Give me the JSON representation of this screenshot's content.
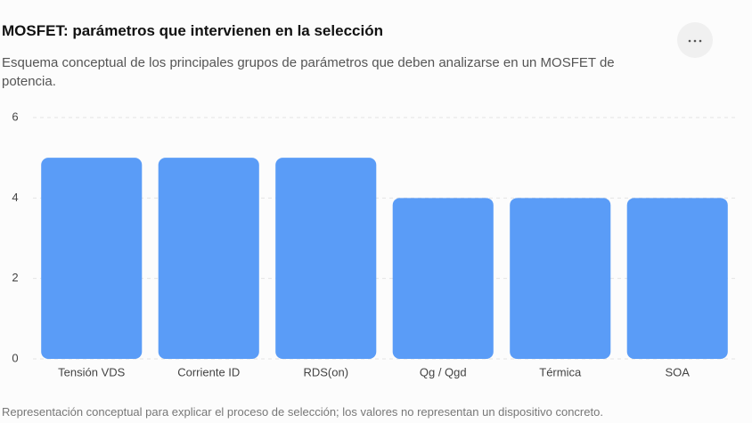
{
  "chart_data": {
    "type": "bar",
    "title": "MOSFET: parámetros que intervienen en la selección",
    "subtitle": "Esquema conceptual de los principales grupos de parámetros que deben analizarse en un MOSFET de potencia.",
    "footnote": "Representación conceptual para explicar el proceso de selección; los valores no representan un dispositivo concreto.",
    "categories": [
      "Tensión VDS",
      "Corriente ID",
      "RDS(on)",
      "Qg / Qgd",
      "Térmica",
      "SOA"
    ],
    "values": [
      5,
      5,
      5,
      4,
      4,
      4
    ],
    "color": "#5a9cf7",
    "ylim": [
      0,
      6
    ],
    "yticks": [
      0,
      2,
      4,
      6
    ],
    "grid": true
  }
}
